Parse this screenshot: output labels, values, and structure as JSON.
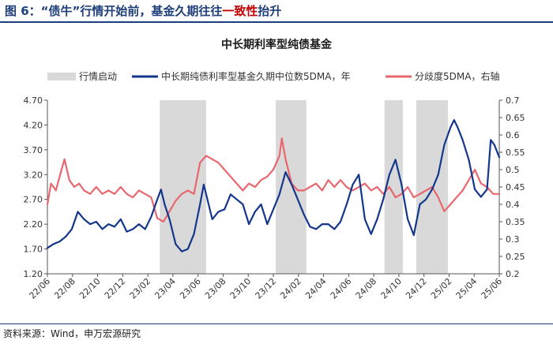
{
  "header": {
    "title_prefix": "图 6：“债牛”行情开始前，基金久期往往",
    "title_highlight": "一致性",
    "title_suffix": "抬升"
  },
  "footer": {
    "source": "资料来源：Wind，申万宏源研究"
  },
  "colors": {
    "series_duration": "#14378c",
    "series_divergence": "#e8676e",
    "shade": "#d9d9d9"
  },
  "chart_data": {
    "type": "line",
    "title": "中长期利率型纯债基金",
    "legend": [
      "行情启动",
      "中长期纯债利率型基金久期中位数5DMA，年",
      "分歧度5DMA，右轴"
    ],
    "x_ticks": [
      "22/06",
      "22/08",
      "22/10",
      "22/12",
      "23/02",
      "23/04",
      "23/06",
      "23/08",
      "23/10",
      "23/12",
      "24/02",
      "24/04",
      "24/06",
      "24/08",
      "24/10",
      "24/12",
      "25/02",
      "25/04",
      "25/06"
    ],
    "x_range": [
      0,
      37
    ],
    "y_left": {
      "min": 1.2,
      "max": 4.7,
      "ticks": [
        "1.20",
        "1.70",
        "2.20",
        "2.70",
        "3.20",
        "3.70",
        "4.20",
        "4.70"
      ]
    },
    "y_right": {
      "min": 0.2,
      "max": 0.7,
      "ticks": [
        "0.2",
        "0.25",
        "0.3",
        "0.35",
        "0.4",
        "0.45",
        "0.5",
        "0.55",
        "0.6",
        "0.65",
        "0.7"
      ]
    },
    "shaded_periods": [
      [
        9.2,
        13.0
      ],
      [
        18.7,
        21.2
      ],
      [
        27.6,
        29.1
      ],
      [
        30.2,
        32.8
      ]
    ],
    "series": [
      {
        "name": "中长期纯债利率型基金久期中位数5DMA，年",
        "axis": "left",
        "points": [
          [
            0,
            1.72
          ],
          [
            0.5,
            1.8
          ],
          [
            1,
            1.85
          ],
          [
            1.5,
            1.95
          ],
          [
            2,
            2.1
          ],
          [
            2.5,
            2.45
          ],
          [
            3,
            2.3
          ],
          [
            3.5,
            2.2
          ],
          [
            4,
            2.25
          ],
          [
            4.5,
            2.1
          ],
          [
            5,
            2.2
          ],
          [
            5.5,
            2.15
          ],
          [
            6,
            2.3
          ],
          [
            6.5,
            2.05
          ],
          [
            7,
            2.1
          ],
          [
            7.5,
            2.2
          ],
          [
            8,
            2.1
          ],
          [
            8.5,
            2.35
          ],
          [
            9,
            2.7
          ],
          [
            9.3,
            2.9
          ],
          [
            9.6,
            2.6
          ],
          [
            10,
            2.3
          ],
          [
            10.5,
            1.8
          ],
          [
            11,
            1.65
          ],
          [
            11.5,
            1.7
          ],
          [
            12,
            2.0
          ],
          [
            12.5,
            2.6
          ],
          [
            12.8,
            3.0
          ],
          [
            13,
            2.8
          ],
          [
            13.5,
            2.3
          ],
          [
            14,
            2.45
          ],
          [
            14.5,
            2.5
          ],
          [
            15,
            2.8
          ],
          [
            15.5,
            2.7
          ],
          [
            16,
            2.6
          ],
          [
            16.5,
            2.2
          ],
          [
            17,
            2.45
          ],
          [
            17.5,
            2.6
          ],
          [
            18,
            2.2
          ],
          [
            18.5,
            2.5
          ],
          [
            19,
            2.8
          ],
          [
            19.5,
            3.25
          ],
          [
            20,
            3.0
          ],
          [
            20.5,
            2.7
          ],
          [
            21,
            2.4
          ],
          [
            21.5,
            2.15
          ],
          [
            22,
            2.1
          ],
          [
            22.5,
            2.2
          ],
          [
            23,
            2.2
          ],
          [
            23.5,
            2.1
          ],
          [
            24,
            2.25
          ],
          [
            24.5,
            2.6
          ],
          [
            25,
            3.0
          ],
          [
            25.5,
            3.2
          ],
          [
            26,
            2.3
          ],
          [
            26.5,
            2.0
          ],
          [
            27,
            2.3
          ],
          [
            27.5,
            2.7
          ],
          [
            28,
            3.2
          ],
          [
            28.5,
            3.5
          ],
          [
            29,
            3.0
          ],
          [
            29.5,
            2.3
          ],
          [
            30,
            1.98
          ],
          [
            30.5,
            2.6
          ],
          [
            31,
            2.7
          ],
          [
            31.5,
            2.9
          ],
          [
            32,
            3.2
          ],
          [
            32.5,
            3.8
          ],
          [
            33,
            4.15
          ],
          [
            33.3,
            4.3
          ],
          [
            33.6,
            4.15
          ],
          [
            34,
            3.9
          ],
          [
            34.5,
            3.5
          ],
          [
            35,
            2.9
          ],
          [
            35.5,
            2.75
          ],
          [
            36,
            2.9
          ],
          [
            36.3,
            3.9
          ],
          [
            36.6,
            3.8
          ],
          [
            37,
            3.55
          ]
        ]
      },
      {
        "name": "分歧度5DMA，右轴",
        "axis": "right",
        "points": [
          [
            0,
            0.4
          ],
          [
            0.3,
            0.46
          ],
          [
            0.7,
            0.44
          ],
          [
            1,
            0.48
          ],
          [
            1.4,
            0.53
          ],
          [
            1.8,
            0.47
          ],
          [
            2.2,
            0.45
          ],
          [
            2.6,
            0.46
          ],
          [
            3,
            0.44
          ],
          [
            3.5,
            0.43
          ],
          [
            4,
            0.45
          ],
          [
            4.5,
            0.43
          ],
          [
            5,
            0.44
          ],
          [
            5.5,
            0.43
          ],
          [
            6,
            0.45
          ],
          [
            6.5,
            0.43
          ],
          [
            7,
            0.42
          ],
          [
            7.5,
            0.44
          ],
          [
            8,
            0.43
          ],
          [
            8.5,
            0.42
          ],
          [
            9,
            0.36
          ],
          [
            9.5,
            0.35
          ],
          [
            10,
            0.38
          ],
          [
            10.5,
            0.41
          ],
          [
            11,
            0.43
          ],
          [
            11.5,
            0.44
          ],
          [
            12,
            0.43
          ],
          [
            12.5,
            0.52
          ],
          [
            13,
            0.54
          ],
          [
            13.5,
            0.53
          ],
          [
            14,
            0.52
          ],
          [
            14.5,
            0.5
          ],
          [
            15,
            0.48
          ],
          [
            15.5,
            0.46
          ],
          [
            16,
            0.44
          ],
          [
            16.5,
            0.46
          ],
          [
            17,
            0.45
          ],
          [
            17.5,
            0.47
          ],
          [
            18,
            0.48
          ],
          [
            18.5,
            0.5
          ],
          [
            19,
            0.54
          ],
          [
            19.2,
            0.59
          ],
          [
            19.5,
            0.53
          ],
          [
            20,
            0.46
          ],
          [
            20.5,
            0.44
          ],
          [
            21,
            0.44
          ],
          [
            21.5,
            0.45
          ],
          [
            22,
            0.46
          ],
          [
            22.5,
            0.44
          ],
          [
            23,
            0.47
          ],
          [
            23.5,
            0.45
          ],
          [
            24,
            0.47
          ],
          [
            24.5,
            0.45
          ],
          [
            25,
            0.44
          ],
          [
            25.5,
            0.45
          ],
          [
            26,
            0.46
          ],
          [
            26.5,
            0.44
          ],
          [
            27,
            0.45
          ],
          [
            27.5,
            0.43
          ],
          [
            28,
            0.45
          ],
          [
            28.5,
            0.42
          ],
          [
            29,
            0.43
          ],
          [
            29.5,
            0.45
          ],
          [
            30,
            0.42
          ],
          [
            30.5,
            0.43
          ],
          [
            31,
            0.44
          ],
          [
            31.5,
            0.45
          ],
          [
            32,
            0.42
          ],
          [
            32.5,
            0.38
          ],
          [
            33,
            0.4
          ],
          [
            33.5,
            0.42
          ],
          [
            34,
            0.44
          ],
          [
            34.5,
            0.47
          ],
          [
            35,
            0.5
          ],
          [
            35.5,
            0.46
          ],
          [
            36,
            0.45
          ],
          [
            36.5,
            0.43
          ],
          [
            37,
            0.43
          ]
        ]
      }
    ]
  }
}
